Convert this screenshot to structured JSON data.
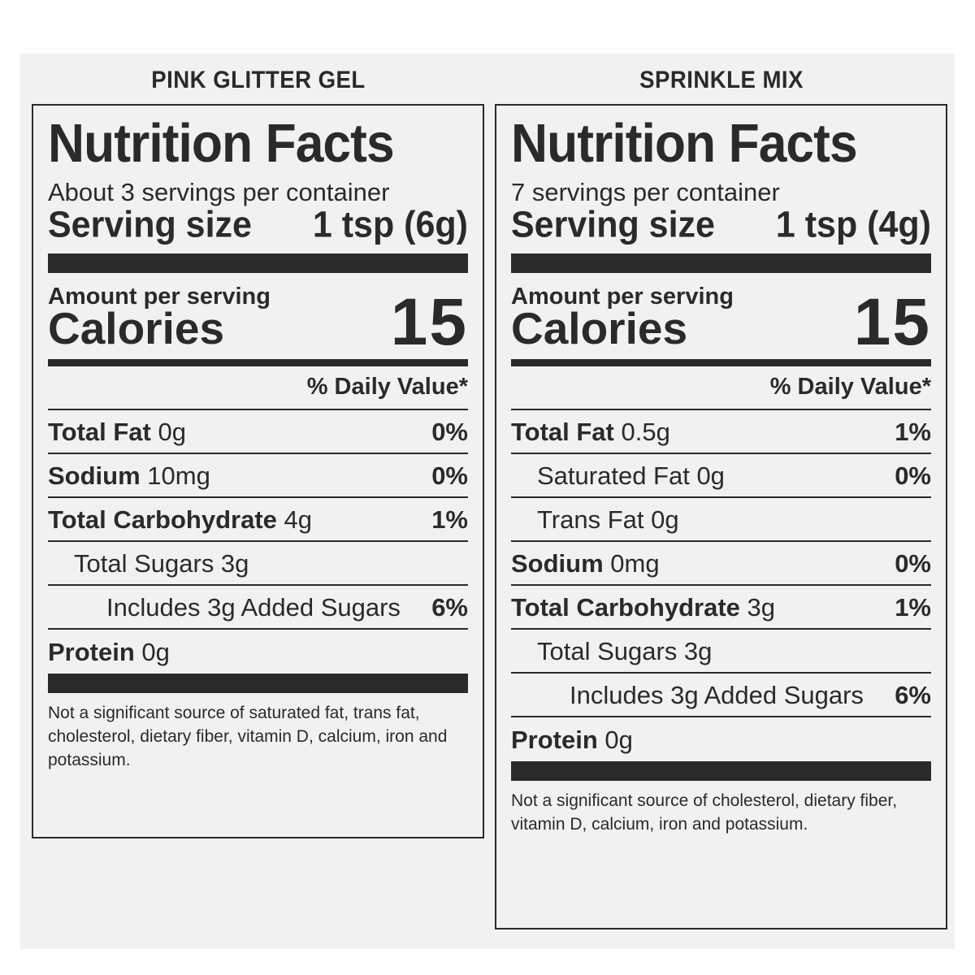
{
  "panels": [
    {
      "product": "PINK GLITTER GEL",
      "title": "Nutrition Facts",
      "servings": "About 3 servings per container",
      "serving_size_label": "Serving size",
      "serving_size_value": "1 tsp (6g)",
      "amount_label": "Amount per serving",
      "calories_label": "Calories",
      "calories_value": "15",
      "dv_header": "% Daily Value*",
      "rows": [
        {
          "name": "Total Fat",
          "amount": "0g",
          "pct": "0%"
        },
        {
          "name": "Sodium",
          "amount": "10mg",
          "pct": "0%"
        },
        {
          "name": "Total Carbohydrate",
          "amount": "4g",
          "pct": "1%"
        },
        {
          "label": "Total Sugars 3g",
          "pct": ""
        },
        {
          "label": "Includes 3g Added Sugars",
          "pct": "6%"
        },
        {
          "name": "Protein",
          "amount": "0g",
          "pct": ""
        }
      ],
      "footnote": "Not a significant source of saturated fat, trans fat, cholesterol, dietary fiber, vitamin D, calcium, iron and potassium."
    },
    {
      "product": "SPRINKLE MIX",
      "title": "Nutrition Facts",
      "servings": "7 servings per container",
      "serving_size_label": "Serving size",
      "serving_size_value": "1 tsp (4g)",
      "amount_label": "Amount per serving",
      "calories_label": "Calories",
      "calories_value": "15",
      "dv_header": "% Daily Value*",
      "rows": [
        {
          "name": "Total Fat",
          "amount": "0.5g",
          "pct": "1%"
        },
        {
          "label": "Saturated Fat 0g",
          "pct": "0%"
        },
        {
          "label": "Trans Fat 0g",
          "pct": ""
        },
        {
          "name": "Sodium",
          "amount": "0mg",
          "pct": "0%"
        },
        {
          "name": "Total Carbohydrate",
          "amount": "3g",
          "pct": "1%"
        },
        {
          "label": "Total Sugars 3g",
          "pct": ""
        },
        {
          "label": "Includes 3g Added Sugars",
          "pct": "6%"
        },
        {
          "name": "Protein",
          "amount": "0g",
          "pct": ""
        }
      ],
      "footnote": "Not a significant source of cholesterol, dietary fiber, vitamin D, calcium, iron and potassium."
    }
  ]
}
